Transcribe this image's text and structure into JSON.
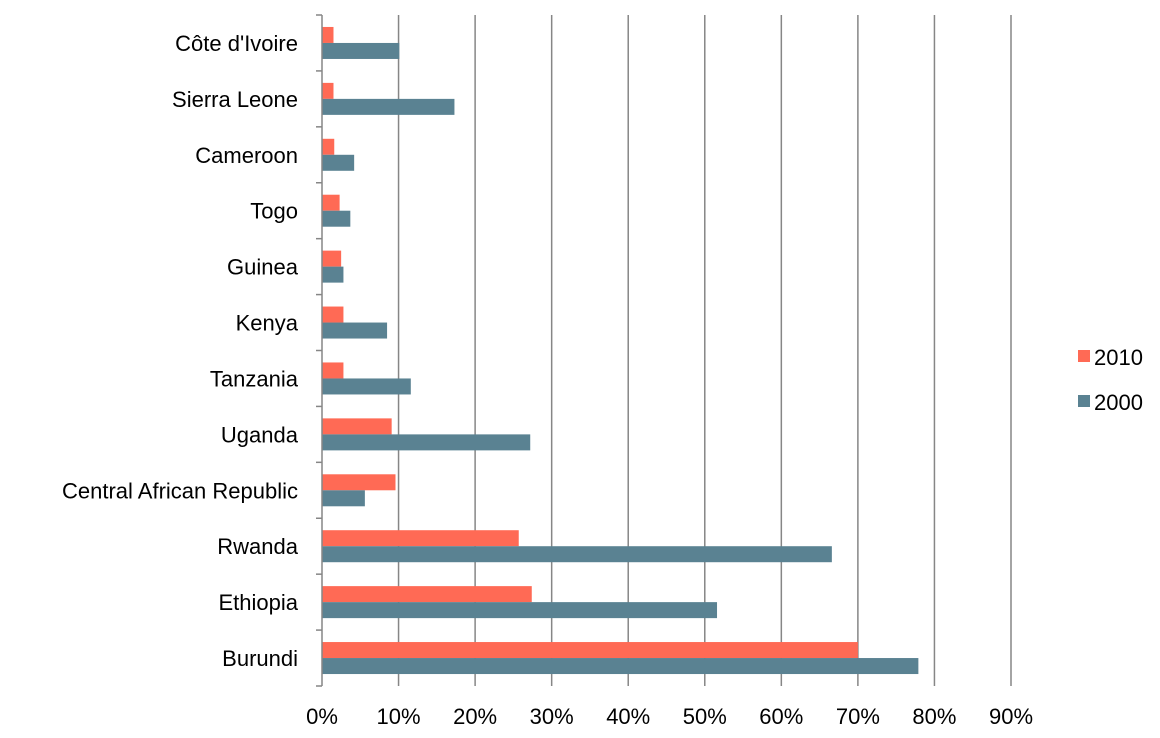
{
  "chart_data": {
    "type": "bar",
    "orientation": "horizontal",
    "categories": [
      "Côte d'Ivoire",
      "Sierra Leone",
      "Cameroon",
      "Togo",
      "Guinea",
      "Kenya",
      "Tanzania",
      "Uganda",
      "Central African Republic",
      "Rwanda",
      "Ethiopia",
      "Burundi"
    ],
    "series": [
      {
        "name": "2010",
        "color": "#FF6A55",
        "values": [
          1.5,
          1.5,
          1.6,
          2.3,
          2.5,
          2.8,
          2.8,
          9.1,
          9.6,
          25.7,
          27.4,
          70.0
        ]
      },
      {
        "name": "2000",
        "color": "#5A8292",
        "values": [
          10.1,
          17.3,
          4.2,
          3.7,
          2.8,
          8.5,
          11.6,
          27.2,
          5.6,
          66.6,
          51.6,
          77.9
        ]
      }
    ],
    "xlim": [
      0,
      90
    ],
    "x_ticks": [
      0,
      10,
      20,
      30,
      40,
      50,
      60,
      70,
      80,
      90
    ],
    "x_tick_labels": [
      "0%",
      "10%",
      "20%",
      "30%",
      "40%",
      "50%",
      "60%",
      "70%",
      "80%",
      "90%"
    ],
    "title": "",
    "xlabel": "",
    "ylabel": "",
    "grid": "vertical",
    "legend": "right"
  }
}
